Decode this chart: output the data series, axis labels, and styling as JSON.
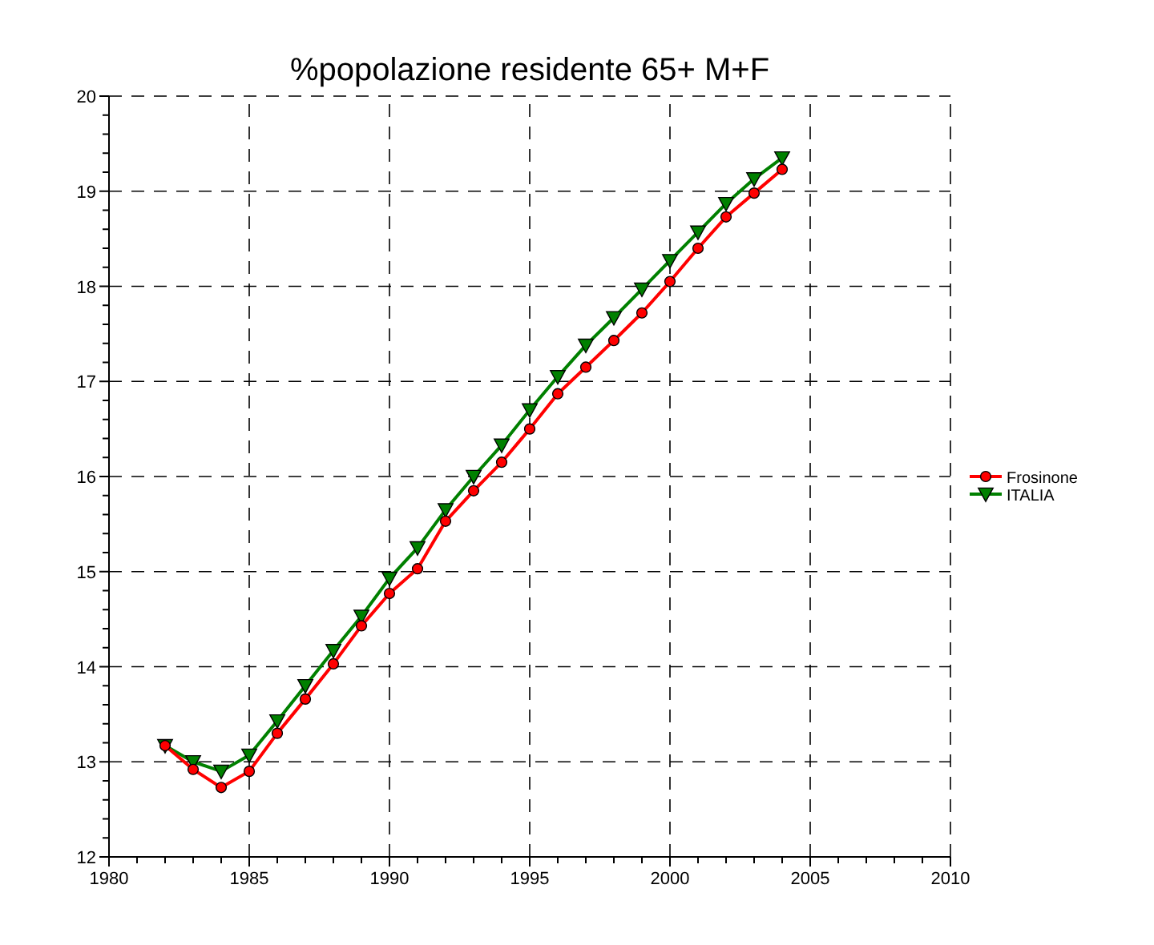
{
  "chart_data": {
    "type": "line",
    "title": "%popolazione residente 65+ M+F",
    "x": [
      1982,
      1983,
      1984,
      1985,
      1986,
      1987,
      1988,
      1989,
      1990,
      1991,
      1992,
      1993,
      1994,
      1995,
      1996,
      1997,
      1998,
      1999,
      2000,
      2001,
      2002,
      2003,
      2004
    ],
    "series": [
      {
        "name": "Frosinone",
        "color": "#ff0000",
        "marker": "circle",
        "values": [
          13.17,
          12.92,
          12.73,
          12.9,
          13.3,
          13.66,
          14.03,
          14.43,
          14.77,
          15.03,
          15.53,
          15.85,
          16.15,
          16.5,
          16.87,
          17.15,
          17.43,
          17.72,
          18.05,
          18.4,
          18.73,
          18.98,
          19.23
        ]
      },
      {
        "name": "ITALIA",
        "color": "#008000",
        "marker": "triangle",
        "values": [
          13.17,
          13.0,
          12.9,
          13.07,
          13.43,
          13.8,
          14.17,
          14.53,
          14.93,
          15.25,
          15.65,
          16.0,
          16.33,
          16.7,
          17.05,
          17.38,
          17.67,
          17.97,
          18.27,
          18.57,
          18.87,
          19.13,
          19.35
        ]
      }
    ],
    "xlim": [
      1980,
      2010
    ],
    "xticks": [
      1980,
      {
        "value": 1981,
        "label": null
      },
      {
        "value": 1982,
        "label": null
      },
      {
        "value": 1983,
        "label": null
      },
      {
        "value": 1984,
        "label": null
      },
      1985,
      {
        "value": 1986,
        "label": null
      },
      {
        "value": 1987,
        "label": null
      },
      {
        "value": 1988,
        "label": null
      },
      {
        "value": 1989,
        "label": null
      },
      1990,
      {
        "value": 1991,
        "label": null
      },
      {
        "value": 1992,
        "label": null
      },
      {
        "value": 1993,
        "label": null
      },
      {
        "value": 1994,
        "label": null
      },
      1995,
      {
        "value": 1996,
        "label": null
      },
      {
        "value": 1997,
        "label": null
      },
      {
        "value": 1998,
        "label": null
      },
      {
        "value": 1999,
        "label": null
      },
      2000,
      {
        "value": 2001,
        "label": null
      },
      {
        "value": 2002,
        "label": null
      },
      {
        "value": 2003,
        "label": null
      },
      {
        "value": 2004,
        "label": null
      },
      2005,
      {
        "value": 2006,
        "label": null
      },
      {
        "value": 2007,
        "label": null
      },
      {
        "value": 2008,
        "label": null
      },
      {
        "value": 2009,
        "label": null
      },
      2010
    ],
    "ylim": [
      12,
      20
    ],
    "yticks": [
      12,
      {
        "value": 12.2,
        "label": null
      },
      {
        "value": 12.4,
        "label": null
      },
      {
        "value": 12.6,
        "label": null
      },
      {
        "value": 12.8,
        "label": null
      },
      13,
      {
        "value": 13.2,
        "label": null
      },
      {
        "value": 13.4,
        "label": null
      },
      {
        "value": 13.6,
        "label": null
      },
      {
        "value": 13.8,
        "label": null
      },
      14,
      {
        "value": 14.2,
        "label": null
      },
      {
        "value": 14.4,
        "label": null
      },
      {
        "value": 14.6,
        "label": null
      },
      {
        "value": 14.8,
        "label": null
      },
      15,
      {
        "value": 15.2,
        "label": null
      },
      {
        "value": 15.4,
        "label": null
      },
      {
        "value": 15.6,
        "label": null
      },
      {
        "value": 15.8,
        "label": null
      },
      16,
      {
        "value": 16.2,
        "label": null
      },
      {
        "value": 16.4,
        "label": null
      },
      {
        "value": 16.6,
        "label": null
      },
      {
        "value": 16.8,
        "label": null
      },
      17,
      {
        "value": 17.2,
        "label": null
      },
      {
        "value": 17.4,
        "label": null
      },
      {
        "value": 17.6,
        "label": null
      },
      {
        "value": 17.8,
        "label": null
      },
      18,
      {
        "value": 18.2,
        "label": null
      },
      {
        "value": 18.4,
        "label": null
      },
      {
        "value": 18.6,
        "label": null
      },
      {
        "value": 18.8,
        "label": null
      },
      19,
      {
        "value": 19.2,
        "label": null
      },
      {
        "value": 19.4,
        "label": null
      },
      {
        "value": 19.6,
        "label": null
      },
      {
        "value": 19.8,
        "label": null
      },
      20
    ],
    "grid": true,
    "legend": "right",
    "line_style": "solid"
  }
}
